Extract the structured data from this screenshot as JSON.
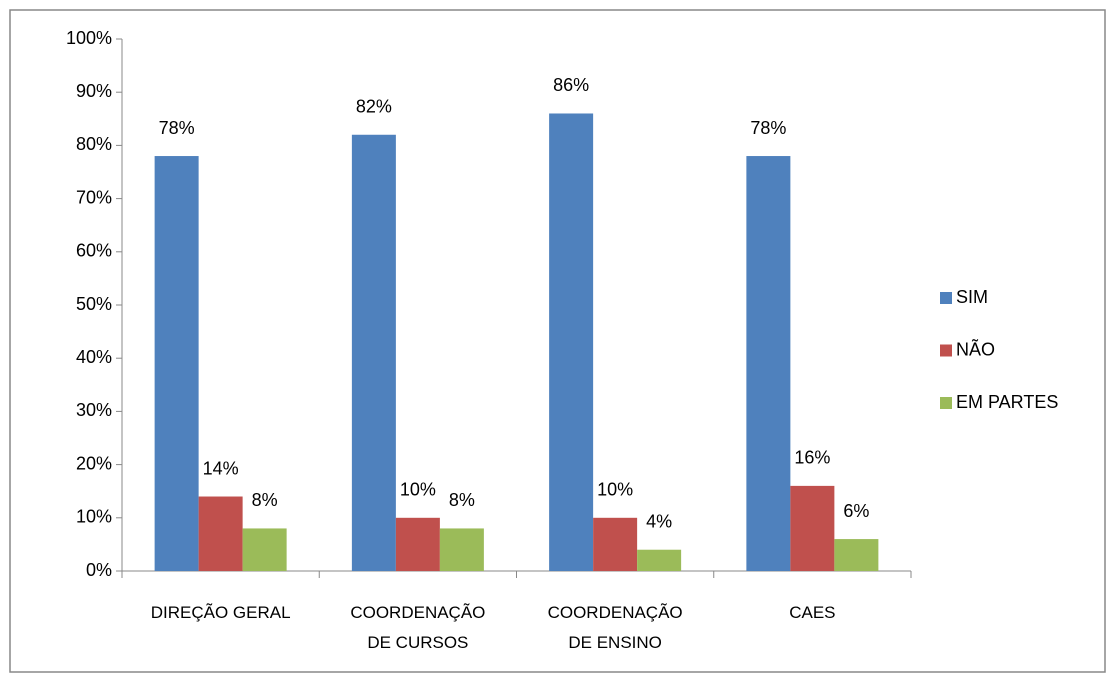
{
  "chart_data": {
    "type": "bar",
    "categories": [
      "DIREÇÃO GERAL",
      "COORDENAÇÃO DE CURSOS",
      "COORDENAÇÃO DE ENSINO",
      "CAES"
    ],
    "series": [
      {
        "name": "SIM",
        "color": "#4f81bd",
        "values": [
          78,
          82,
          86,
          78
        ],
        "value_labels": [
          "78%",
          "82%",
          "86%",
          "78%"
        ]
      },
      {
        "name": "NÃO",
        "color": "#c0504d",
        "values": [
          14,
          10,
          10,
          16
        ],
        "value_labels": [
          "14%",
          "10%",
          "10%",
          "16%"
        ]
      },
      {
        "name": "EM PARTES",
        "color": "#9bbb59",
        "values": [
          8,
          8,
          4,
          6
        ],
        "value_labels": [
          "8%",
          "8%",
          "4%",
          "6%"
        ]
      }
    ],
    "ylim": [
      0,
      100
    ],
    "yticks": [
      {
        "value": 0,
        "label": "0%"
      },
      {
        "value": 10,
        "label": "10%"
      },
      {
        "value": 20,
        "label": "20%"
      },
      {
        "value": 30,
        "label": "30%"
      },
      {
        "value": 40,
        "label": "40%"
      },
      {
        "value": 50,
        "label": "50%"
      },
      {
        "value": 60,
        "label": "60%"
      },
      {
        "value": 70,
        "label": "70%"
      },
      {
        "value": 80,
        "label": "80%"
      },
      {
        "value": 90,
        "label": "90%"
      },
      {
        "value": 100,
        "label": "100%"
      }
    ],
    "grid": false,
    "legend": "right"
  }
}
